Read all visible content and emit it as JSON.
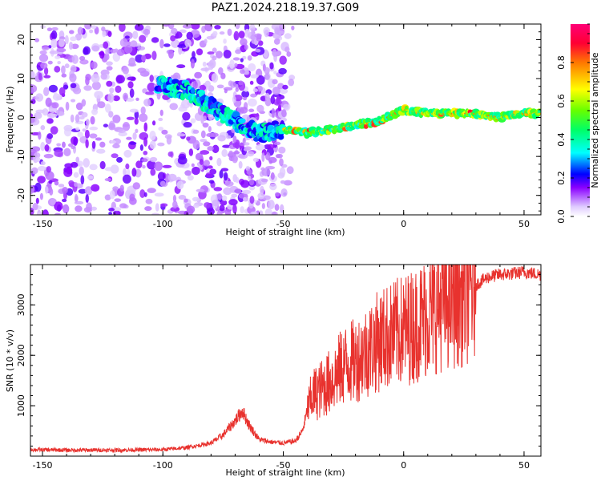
{
  "title": "PAZ1.2024.218.19.37.G09",
  "chart_data": [
    {
      "type": "heatmap",
      "xlabel": "Height of straight line (km)",
      "ylabel": "Frequency (Hz)",
      "xlim": [
        -155,
        57
      ],
      "ylim": [
        -25,
        24
      ],
      "xticks": [
        -150,
        -100,
        -50,
        0,
        50
      ],
      "yticks": [
        -20,
        -10,
        0,
        10,
        20
      ],
      "colorbar": {
        "label": "Normalized spectral amplitude",
        "range": [
          0,
          1
        ],
        "ticks": [
          "0.0",
          "0.2",
          "0.4",
          "0.6",
          "0.8"
        ],
        "colormap": "gist_rainbow_r"
      },
      "description_values": {
        "ridge_x": [
          -100,
          -90,
          -80,
          -70,
          -60,
          -50,
          -40,
          -30,
          -20,
          -10,
          0,
          10,
          20,
          30,
          40,
          50,
          57
        ],
        "ridge_freq": [
          8,
          7,
          3,
          -1,
          -4,
          -3,
          -4,
          -3,
          -2,
          -1,
          2,
          1,
          1,
          1,
          0,
          1,
          1
        ]
      }
    },
    {
      "type": "line",
      "xlabel": "Height of straight line (km)",
      "ylabel": "SNR (10 * v/v)",
      "xlim": [
        -155,
        57
      ],
      "ylim": [
        0,
        3800
      ],
      "xticks": [
        -150,
        -100,
        -50,
        0,
        50
      ],
      "yticks": [
        1000,
        2000,
        3000
      ],
      "series": [
        {
          "color": "#e8322e",
          "x": [
            -155,
            -140,
            -120,
            -100,
            -90,
            -80,
            -75,
            -70,
            -67,
            -64,
            -60,
            -55,
            -50,
            -45,
            -42,
            -40,
            -38,
            -35,
            -30,
            -25,
            -20,
            -15,
            -10,
            -5,
            0,
            5,
            10,
            15,
            20,
            25,
            30,
            35,
            40,
            45,
            50,
            57
          ],
          "values": [
            130,
            120,
            120,
            130,
            170,
            260,
            420,
            700,
            900,
            600,
            330,
            280,
            260,
            300,
            500,
            900,
            1200,
            1300,
            1500,
            1800,
            1900,
            2100,
            2300,
            2400,
            2500,
            2600,
            2800,
            3000,
            3100,
            3200,
            3400,
            3550,
            3600,
            3620,
            3650,
            3600
          ]
        }
      ]
    }
  ]
}
